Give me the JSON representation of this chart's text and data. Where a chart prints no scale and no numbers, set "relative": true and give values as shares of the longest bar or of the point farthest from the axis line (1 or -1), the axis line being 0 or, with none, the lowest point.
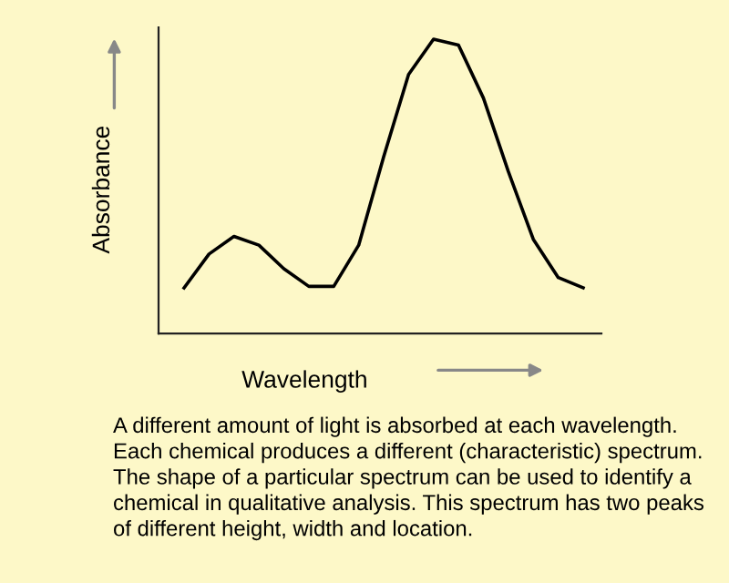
{
  "chart_data": {
    "type": "line",
    "relative": true,
    "xlabel": "Wavelength",
    "ylabel": "Absorbance",
    "categories": [
      null,
      null,
      null,
      null,
      null,
      null,
      null,
      null,
      null,
      null,
      null,
      null,
      null,
      null,
      null,
      null,
      null
    ],
    "series": [
      {
        "color": "#000000",
        "values": [
          0.155,
          0.27,
          0.33,
          0.3,
          0.22,
          0.16,
          0.16,
          0.3,
          0.6,
          0.88,
          1,
          0.98,
          0.8,
          0.55,
          0.32,
          0.19,
          0.155
        ]
      }
    ],
    "annotations": [
      "A different amount of light is absorbed at each wavelength. Each chemical produces a different (characteristic) spectrum. The shape of a particular spectrum can be used to identify a chemical in qualitative analysis. This spectrum has two peaks of different height, width and location."
    ],
    "grid": false,
    "legend": false,
    "marker": "none",
    "line_style": "solid"
  }
}
